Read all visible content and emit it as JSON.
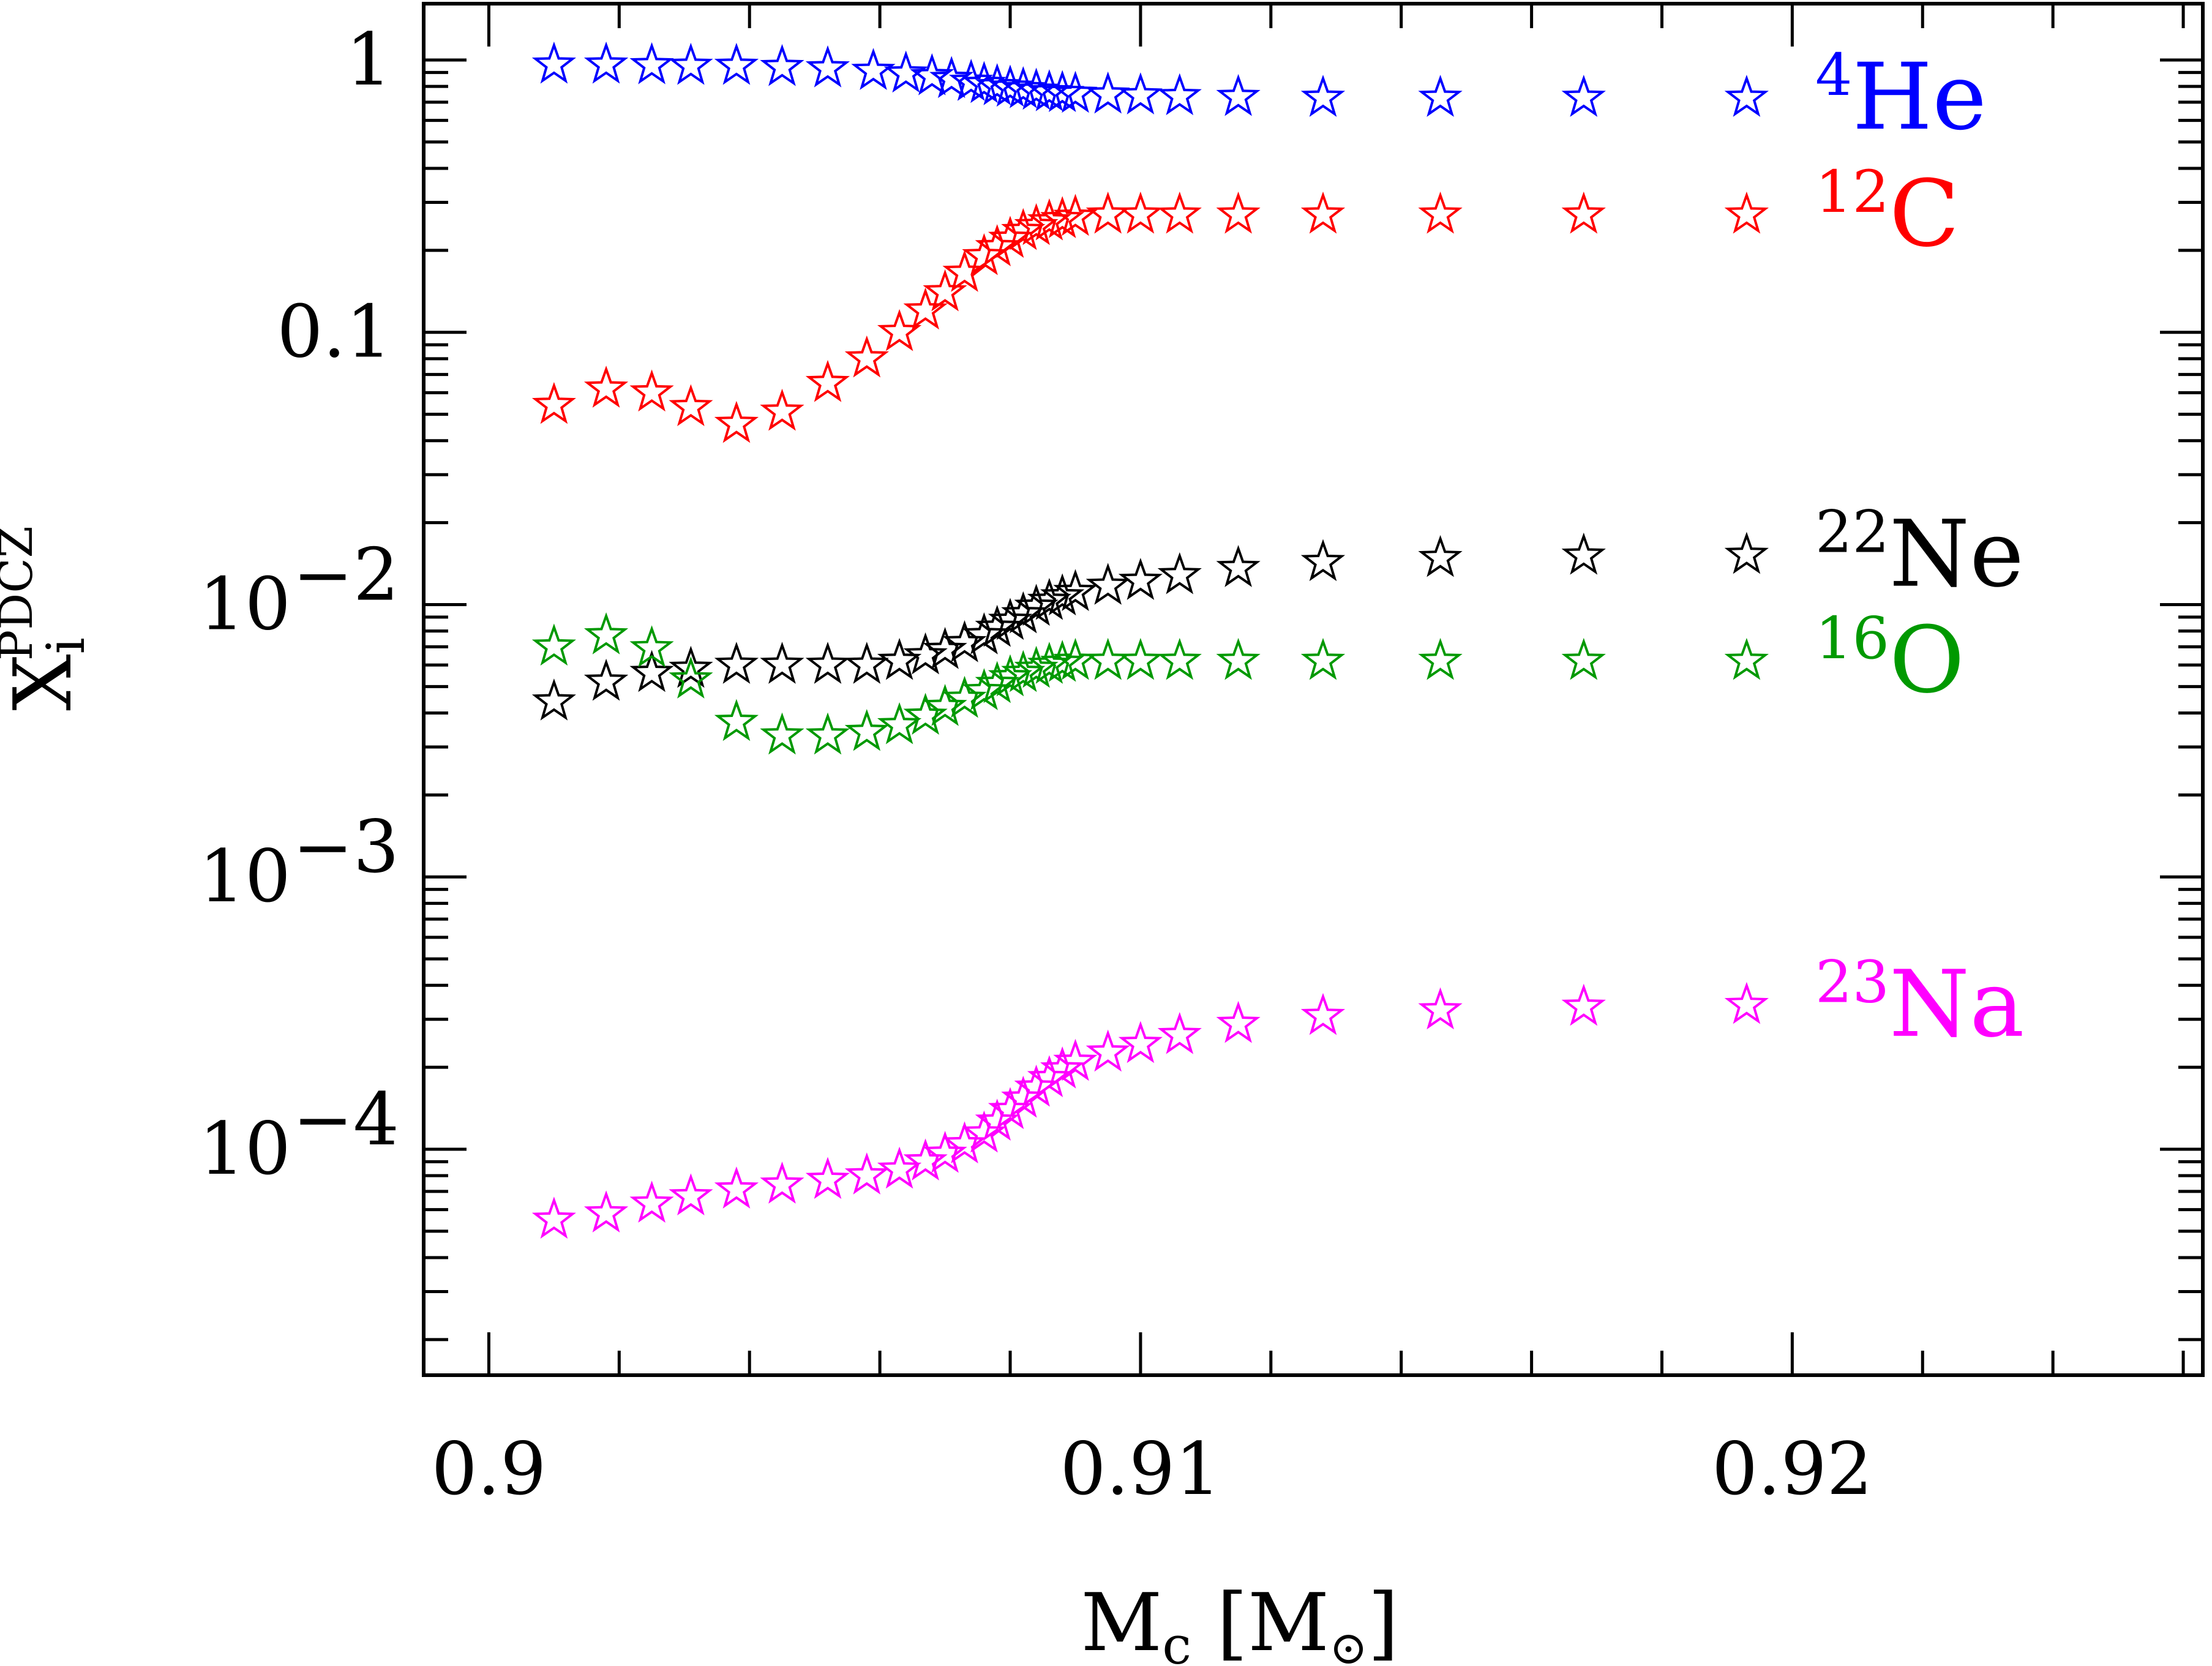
{
  "chart_data": {
    "type": "scatter",
    "xlabel": "M",
    "xlabel_sub": "c",
    "xlabel_unit_open": " [M",
    "xlabel_unit_sun": "⊙",
    "xlabel_unit_close": "]",
    "ylabel": "X",
    "ylabel_sub": "i",
    "ylabel_sup": "PDCZ",
    "xlim": [
      0.899,
      0.9263
    ],
    "ylim": [
      1.48e-05,
      1.61
    ],
    "y_scale": "log",
    "grid": false,
    "legend": "labels at right end of each series",
    "x_ticks": [
      {
        "value": 0.9,
        "label": "0.9"
      },
      {
        "value": 0.91,
        "label": "0.91"
      },
      {
        "value": 0.92,
        "label": "0.92"
      }
    ],
    "y_ticks": [
      {
        "value": 1,
        "label": "1",
        "sup": ""
      },
      {
        "value": 0.1,
        "label": "0.1",
        "sup": ""
      },
      {
        "value": 0.01,
        "label": "10",
        "sup": "−2"
      },
      {
        "value": 0.001,
        "label": "10",
        "sup": "−3"
      },
      {
        "value": 0.0001,
        "label": "10",
        "sup": "−4"
      }
    ],
    "series": [
      {
        "name": "He",
        "sup": "4",
        "color": "#0000ff",
        "x": [
          0.901,
          0.9018,
          0.9025,
          0.9031,
          0.9038,
          0.9045,
          0.9052,
          0.9059,
          0.9064,
          0.9068,
          0.9071,
          0.9074,
          0.9076,
          0.9078,
          0.908,
          0.9082,
          0.9084,
          0.9086,
          0.9088,
          0.909,
          0.9095,
          0.91,
          0.9106,
          0.9115,
          0.9128,
          0.9146,
          0.9168,
          0.9193
        ],
        "y": [
          0.96,
          0.96,
          0.955,
          0.95,
          0.95,
          0.94,
          0.93,
          0.91,
          0.89,
          0.87,
          0.85,
          0.83,
          0.815,
          0.8,
          0.79,
          0.78,
          0.77,
          0.76,
          0.755,
          0.75,
          0.745,
          0.74,
          0.735,
          0.73,
          0.725,
          0.725,
          0.725,
          0.725
        ]
      },
      {
        "name": "C",
        "sup": "12",
        "color": "#ff0000",
        "x": [
          0.901,
          0.9018,
          0.9025,
          0.9031,
          0.9038,
          0.9045,
          0.9052,
          0.9058,
          0.9063,
          0.9067,
          0.907,
          0.9073,
          0.9076,
          0.9078,
          0.908,
          0.9082,
          0.9084,
          0.9086,
          0.9088,
          0.909,
          0.9095,
          0.91,
          0.9106,
          0.9115,
          0.9128,
          0.9146,
          0.9168,
          0.9193
        ],
        "y": [
          0.054,
          0.062,
          0.06,
          0.053,
          0.046,
          0.051,
          0.065,
          0.08,
          0.1,
          0.12,
          0.14,
          0.165,
          0.19,
          0.205,
          0.22,
          0.235,
          0.245,
          0.255,
          0.26,
          0.265,
          0.27,
          0.27,
          0.27,
          0.27,
          0.27,
          0.27,
          0.27,
          0.27
        ]
      },
      {
        "name": "Ne",
        "sup": "22",
        "color": "#000000",
        "x": [
          0.901,
          0.9018,
          0.9025,
          0.9031,
          0.9038,
          0.9045,
          0.9052,
          0.9058,
          0.9063,
          0.9067,
          0.907,
          0.9073,
          0.9076,
          0.9078,
          0.908,
          0.9082,
          0.9084,
          0.9086,
          0.9088,
          0.909,
          0.9095,
          0.91,
          0.9106,
          0.9115,
          0.9128,
          0.9146,
          0.9168,
          0.9193
        ],
        "y": [
          0.0044,
          0.0052,
          0.0056,
          0.0058,
          0.006,
          0.006,
          0.006,
          0.006,
          0.0062,
          0.0065,
          0.0068,
          0.0072,
          0.0077,
          0.0082,
          0.0087,
          0.0092,
          0.0098,
          0.0103,
          0.0107,
          0.0111,
          0.0117,
          0.0122,
          0.0128,
          0.0136,
          0.0143,
          0.0148,
          0.0151,
          0.0152
        ]
      },
      {
        "name": "O",
        "sup": "16",
        "color": "#009900",
        "x": [
          0.901,
          0.9018,
          0.9025,
          0.9031,
          0.9038,
          0.9045,
          0.9052,
          0.9058,
          0.9063,
          0.9067,
          0.907,
          0.9073,
          0.9076,
          0.9078,
          0.908,
          0.9082,
          0.9084,
          0.9086,
          0.9088,
          0.909,
          0.9095,
          0.91,
          0.9106,
          0.9115,
          0.9128,
          0.9146,
          0.9168,
          0.9193
        ],
        "y": [
          0.007,
          0.0077,
          0.0069,
          0.0053,
          0.0037,
          0.0033,
          0.0033,
          0.0034,
          0.0036,
          0.0039,
          0.0042,
          0.0045,
          0.0048,
          0.0051,
          0.0054,
          0.0056,
          0.0058,
          0.006,
          0.0061,
          0.0062,
          0.0062,
          0.0062,
          0.0062,
          0.0062,
          0.0062,
          0.0062,
          0.0062,
          0.0062
        ]
      },
      {
        "name": "Na",
        "sup": "23",
        "color": "#ff00ff",
        "x": [
          0.901,
          0.9018,
          0.9025,
          0.9031,
          0.9038,
          0.9045,
          0.9052,
          0.9058,
          0.9063,
          0.9067,
          0.907,
          0.9073,
          0.9076,
          0.9078,
          0.908,
          0.9082,
          0.9084,
          0.9086,
          0.9088,
          0.909,
          0.9095,
          0.91,
          0.9106,
          0.9115,
          0.9128,
          0.9146,
          0.9168,
          0.9193
        ],
        "y": [
          5.5e-05,
          5.8e-05,
          6.3e-05,
          6.7e-05,
          7.1e-05,
          7.4e-05,
          7.7e-05,
          8e-05,
          8.4e-05,
          9e-05,
          9.6e-05,
          0.000104,
          0.000114,
          0.000126,
          0.000139,
          0.000153,
          0.000168,
          0.000182,
          0.000196,
          0.000209,
          0.000226,
          0.000243,
          0.000262,
          0.000288,
          0.000308,
          0.000323,
          0.000333,
          0.000338
        ]
      }
    ]
  }
}
